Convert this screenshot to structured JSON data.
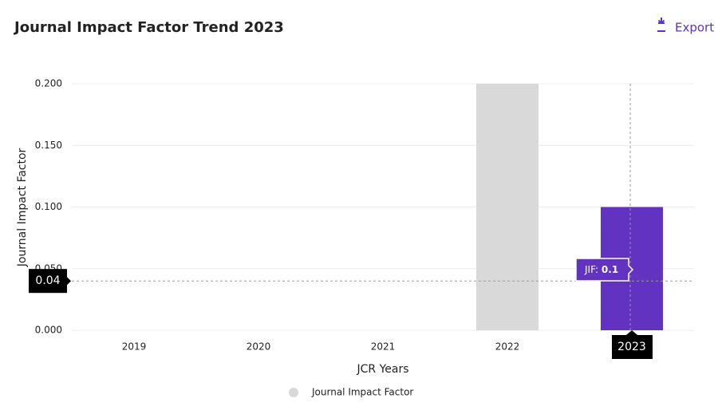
{
  "toolbar": {
    "export": "Export"
  },
  "chart_data": {
    "type": "bar",
    "title": "Journal Impact Factor Trend 2023",
    "x_label": "JCR Years",
    "y_label": "Journal Impact Factor",
    "categories": [
      "2019",
      "2020",
      "2021",
      "2022",
      "2023"
    ],
    "series": [
      {
        "name": "Journal Impact Factor",
        "color": "#d9d9d9",
        "values": [
          null,
          null,
          null,
          0.2,
          0.1
        ]
      }
    ],
    "highlight_color": "#6232c1",
    "ylim": [
      0,
      0.2
    ],
    "yticks": [
      {
        "value": 0,
        "label": "0.000"
      },
      {
        "value": 0.05,
        "label": "0.050"
      },
      {
        "value": 0.1,
        "label": "0.100"
      },
      {
        "value": 0.15,
        "label": "0.150"
      },
      {
        "value": 0.2,
        "label": "0.200"
      }
    ],
    "grid": true,
    "crosshair": {
      "x": "2023",
      "y": 0.04
    },
    "tooltip": {
      "label": "JIF:",
      "value": 0.1
    }
  }
}
